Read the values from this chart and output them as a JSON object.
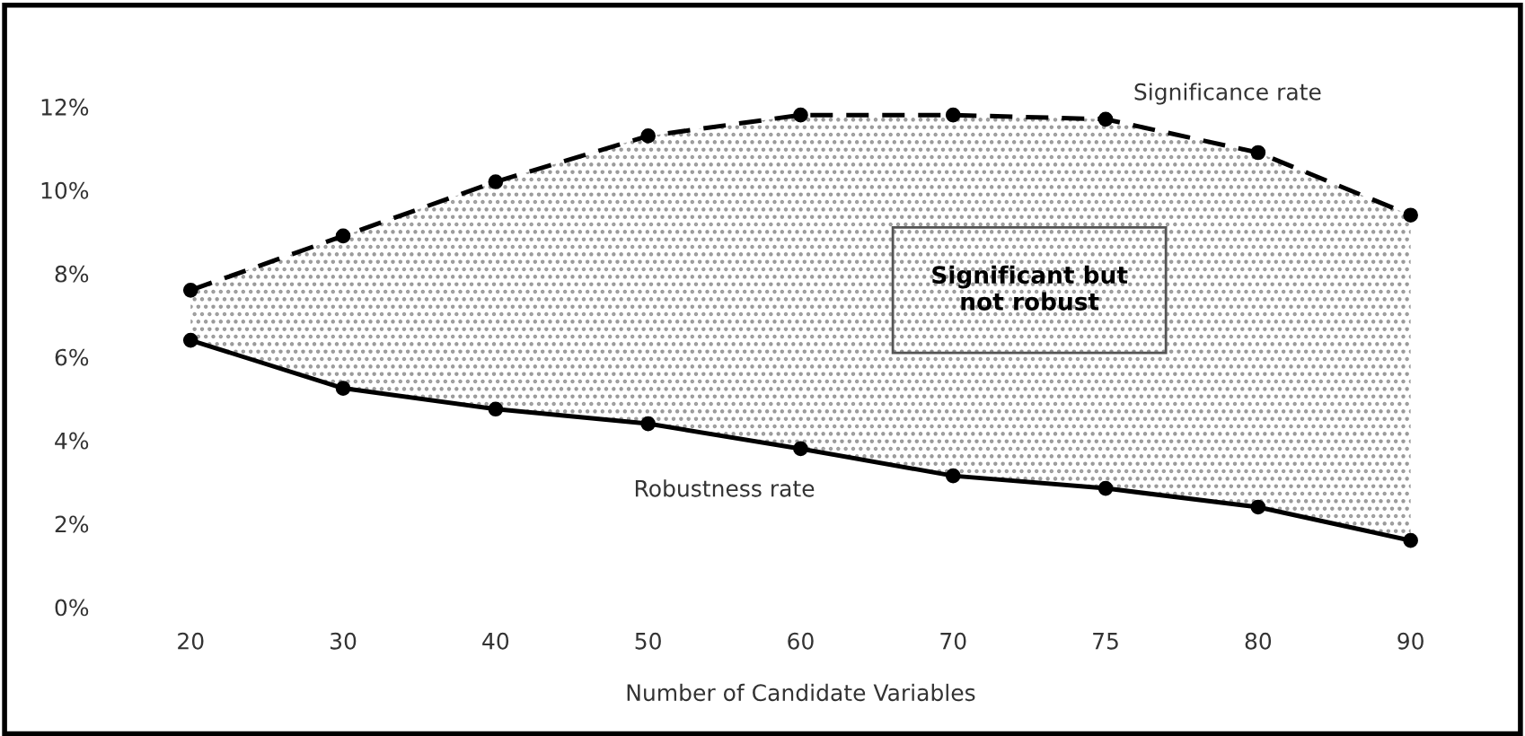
{
  "chart_data": {
    "type": "line",
    "xlabel": "Number of Candidate Variables",
    "categories": [
      "20",
      "30",
      "40",
      "50",
      "60",
      "70",
      "75",
      "80",
      "90"
    ],
    "series": [
      {
        "name": "Significance rate",
        "color": "#000000",
        "line_style": "dashed",
        "values": [
          7.6,
          8.9,
          10.2,
          11.3,
          11.8,
          11.8,
          11.7,
          10.9,
          9.4
        ],
        "lower": [
          6.4,
          5.25,
          4.75,
          4.4,
          3.8,
          3.15,
          2.85,
          2.4,
          1.6
        ],
        "upper": [
          7.6,
          8.9,
          10.2,
          11.3,
          11.8,
          11.8,
          11.7,
          10.9,
          9.4
        ]
      },
      {
        "name": "Robustness rate",
        "color": "#000000",
        "line_style": "solid",
        "values": [
          6.4,
          5.25,
          4.75,
          4.4,
          3.8,
          3.15,
          2.85,
          2.4,
          1.6
        ]
      }
    ],
    "annotations": [
      "Significant but\nnot robust"
    ],
    "ylim": [
      0,
      12
    ],
    "yticks": [
      {
        "value": 0,
        "label": "0%"
      },
      {
        "value": 2,
        "label": "2%"
      },
      {
        "value": 4,
        "label": "4%"
      },
      {
        "value": 6,
        "label": "6%"
      },
      {
        "value": 8,
        "label": "8%"
      },
      {
        "value": 10,
        "label": "10%"
      },
      {
        "value": 12,
        "label": "12%"
      }
    ],
    "marker": "circle",
    "grid": false,
    "legend": false
  }
}
